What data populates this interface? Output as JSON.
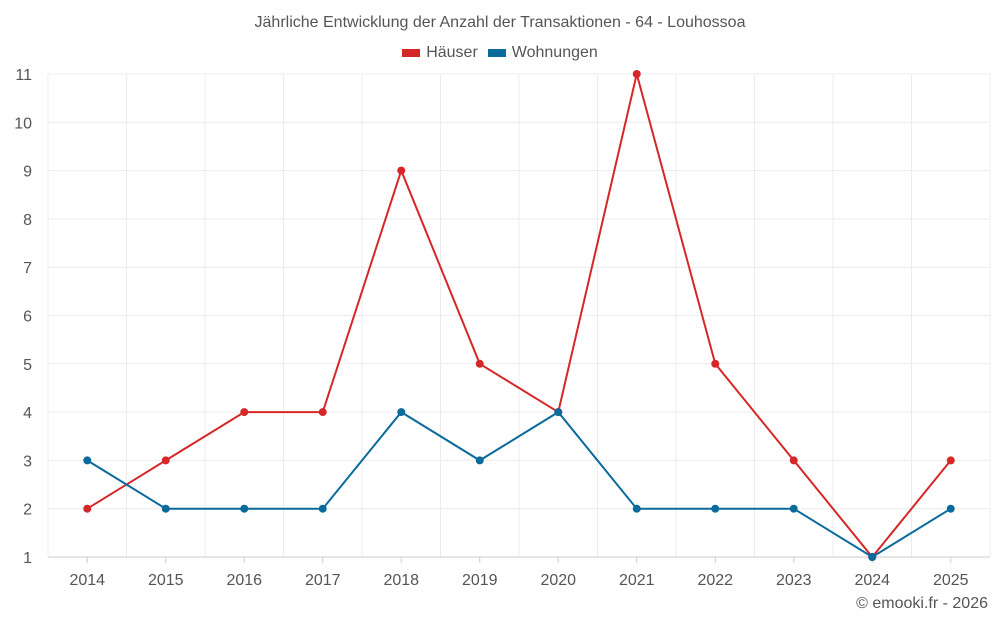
{
  "chart_data": {
    "type": "line",
    "title": "Jährliche Entwicklung der Anzahl der Transaktionen - 64 - Louhossoa",
    "categories": [
      "2014",
      "2015",
      "2016",
      "2017",
      "2018",
      "2019",
      "2020",
      "2021",
      "2022",
      "2023",
      "2024",
      "2025"
    ],
    "series": [
      {
        "name": "Häuser",
        "color": "#d62728",
        "values": [
          2,
          3,
          4,
          4,
          9,
          5,
          4,
          11,
          5,
          3,
          1,
          3
        ]
      },
      {
        "name": "Wohnungen",
        "color": "#0b6a9c",
        "values": [
          3,
          2,
          2,
          2,
          4,
          3,
          4,
          2,
          2,
          2,
          1,
          2
        ]
      }
    ],
    "ylim": [
      1,
      11
    ],
    "yticks": [
      1,
      2,
      3,
      4,
      5,
      6,
      7,
      8,
      9,
      10,
      11
    ],
    "grid": true,
    "legend_position": "top-center"
  },
  "credit": "© emooki.fr - 2026"
}
